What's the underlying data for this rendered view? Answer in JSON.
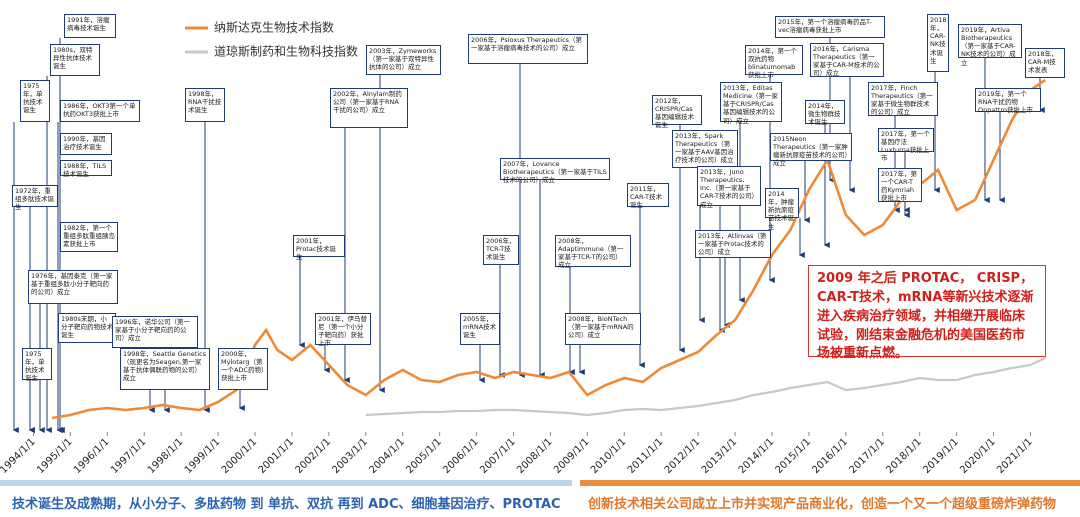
{
  "chart_data": {
    "type": "line",
    "x": [
      1994.5,
      1995,
      1995.5,
      1996,
      1996.5,
      1997,
      1997.5,
      1998,
      1998.5,
      1999,
      1999.5,
      2000,
      2000.3,
      2000.6,
      2001,
      2001.5,
      2002,
      2002.5,
      2003,
      2003.5,
      2004,
      2004.5,
      2005,
      2005.5,
      2006,
      2006.5,
      2007,
      2007.5,
      2008,
      2008.5,
      2009,
      2009.5,
      2010,
      2010.5,
      2011,
      2011.5,
      2012,
      2012.5,
      2013,
      2013.5,
      2014,
      2014.5,
      2015,
      2015.5,
      2016,
      2016.5,
      2017,
      2017.5,
      2018,
      2018.5,
      2019,
      2019.5,
      2020,
      2020.5,
      2021,
      2021.4
    ],
    "series": [
      {
        "name": "纳斯达克生物技术指数",
        "color": "#ee8a35",
        "values": [
          12,
          15,
          20,
          22,
          20,
          22,
          25,
          22,
          20,
          28,
          40,
          85,
          100,
          80,
          70,
          85,
          65,
          45,
          35,
          50,
          60,
          50,
          48,
          55,
          58,
          52,
          58,
          55,
          52,
          58,
          35,
          45,
          52,
          48,
          62,
          70,
          78,
          95,
          110,
          140,
          175,
          200,
          240,
          270,
          215,
          195,
          205,
          230,
          245,
          260,
          220,
          230,
          270,
          310,
          340,
          350
        ]
      },
      {
        "name": "道琼斯制药和生物科技指数",
        "color": "#c8c8c8",
        "values": [
          null,
          null,
          null,
          null,
          null,
          null,
          null,
          null,
          null,
          null,
          null,
          null,
          null,
          null,
          null,
          null,
          null,
          null,
          15,
          16,
          17,
          18,
          18,
          19,
          19,
          20,
          20,
          19,
          18,
          17,
          15,
          17,
          20,
          21,
          20,
          22,
          24,
          27,
          30,
          35,
          38,
          42,
          45,
          48,
          40,
          42,
          45,
          48,
          52,
          50,
          50,
          55,
          58,
          62,
          65,
          72
        ]
      }
    ],
    "xlim": [
      1993.5,
      2021.8
    ],
    "xticks": [
      {
        "value": 1994,
        "label": "1994/1/1"
      },
      {
        "value": 1995,
        "label": "1995/1/1"
      },
      {
        "value": 1996,
        "label": "1996/1/1"
      },
      {
        "value": 1997,
        "label": "1997/1/1"
      },
      {
        "value": 1998,
        "label": "1998/1/1"
      },
      {
        "value": 1999,
        "label": "1999/1/1"
      },
      {
        "value": 2000,
        "label": "2000/1/1"
      },
      {
        "value": 2001,
        "label": "2001/1/1"
      },
      {
        "value": 2002,
        "label": "2002/1/1"
      },
      {
        "value": 2003,
        "label": "2003/1/1"
      },
      {
        "value": 2004,
        "label": "2004/1/1"
      },
      {
        "value": 2005,
        "label": "2005/1/1"
      },
      {
        "value": 2006,
        "label": "2006/1/1"
      },
      {
        "value": 2007,
        "label": "2007/1/1"
      },
      {
        "value": 2008,
        "label": "2008/1/1"
      },
      {
        "value": 2009,
        "label": "2009/1/1"
      },
      {
        "value": 2010,
        "label": "2010/1/1"
      },
      {
        "value": 2011,
        "label": "2011/1/1"
      },
      {
        "value": 2012,
        "label": "2012/1/1"
      },
      {
        "value": 2013,
        "label": "2013/1/1"
      },
      {
        "value": 2014,
        "label": "2014/1/1"
      },
      {
        "value": 2015,
        "label": "2015/1/1"
      },
      {
        "value": 2016,
        "label": "2016/1/1"
      },
      {
        "value": 2017,
        "label": "2017/1/1"
      },
      {
        "value": 2018,
        "label": "2018/1/1"
      },
      {
        "value": 2019,
        "label": "2019/1/1"
      },
      {
        "value": 2020,
        "label": "2020/1/1"
      },
      {
        "value": 2021,
        "label": "2021/1/1"
      }
    ],
    "ylim": [
      0,
      430
    ],
    "legend": "top-left",
    "callout": "2009 年之后 PROTAC， CRISP，CAR-T技术，mRNA等新兴技术逐渐进入疾病治疗领域，并相继开展临床试验，刚结束金融危机的美国医药市场被重新点燃。",
    "band_left": "技术诞生及成熟期，从小分子、多肽药物 到 单抗、双抗 再到 ADC、细胞基因治疗、PROTAC",
    "band_right": "创新技术相关公司成立上市并实现产品商业化，创造一个又一个超级重磅炸弹药物",
    "annotations": [
      "1975年，单抗技术诞生",
      "1991年，溶瘤病毒技术诞生",
      "1980s，双特异性抗体技术诞生",
      "1986年，OKT3第一个单抗药OKT3获批上市",
      "1990年，基因治疗技术诞生",
      "1988年，TILS技术诞生",
      "1972年，重组多肽技术诞生",
      "1982年，第一个重组多肽重组胰岛素获批上市",
      "1976年，基因泰克（第一家基于重组多肽小分子靶向药的公司）成立",
      "1980s末期，小分子靶向药物技术诞生",
      "1975年，单抗技术诞生",
      "1998年，RNA干扰技术诞生",
      "1996年，诺华公司（第一家基于小分子靶向药的公司）成立",
      "1998年，Seattle Genetics（现更名为Seagen,第一家基于抗体偶联药物的公司）成立",
      "2000年，Mylotarg（第一个ADC药物）获批上市",
      "2001年，Protac技术诞生",
      "2001年，伊马替尼（第一个小分子靶向药）获批上市",
      "2002年，Alnylam制药公司（第一家基于RNA干扰的公司）成立",
      "2003年，Zymeworks（第一家基于双特异性抗体的公司）成立",
      "2005年，mRNA技术诞生",
      "2006年，TCR-T技术诞生",
      "2006年，Psioxus Therapeutics（第一家基于溶瘤病毒技术的公司）成立",
      "2007年，Lovance Biotherapeutics（第一家基于TILS技术的公司）成立",
      "2008年，Adaptimmune（第一家基于TCR-T的公司）成立",
      "2008年，BioNTech（第一家基于mRNA的公司）成立",
      "2011年，CAR-T技术诞生",
      "2012年，CRISPR/Cas基因编辑技术诞生",
      "2013年，Spark Therapeutics（第一家基于AAV基因治疗技术的公司）成立",
      "2013年，Juno Therapeutics, Inc.（第一家基于CAR-T技术的公司）成立",
      "2013年，Editas Medicine（第一家基于CRISPR/Cas基因编辑技术的公司）成立",
      "2013年，Atlinvas（第一家基于Protac技术的公司）成立",
      "2014年，第一个双抗药物blinatumomab获批上市",
      "2014年，肿瘤新抗原疫苗技术诞生",
      "2014年，微生物群技术诞生",
      "2015年，第一个溶瘤病毒药品T-vec溶瘤病毒获批上市",
      "2015Neon Therapeutics（第一家肿瘤新抗原疫苗技术的公司）成立",
      "2016年，Carisma Therapeutics（第一家基于CAR-M技术的公司）成立",
      "2017年，Finch Therapeutics（第一家基于微生物群技术的公司）成立",
      "2017年，第一个基因疗法Luxturna获批上市",
      "2017年，第一个CAR-T药Kymriah获批上市",
      "2018年，CAR-NK技术诞生",
      "2019年，Artiva Biotherapeutics（第一家基于CAR-NK技术的公司）成立",
      "2019年，第一个RNA干扰药物Onpattro获批上市",
      "2018年，CAR-M技术发表"
    ]
  }
}
